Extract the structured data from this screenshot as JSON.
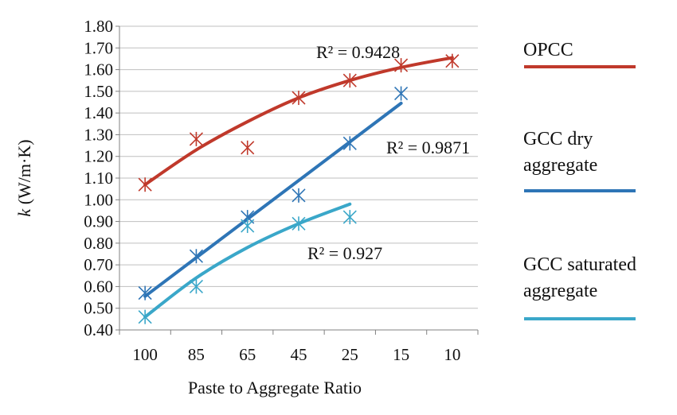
{
  "chart_data": {
    "type": "scatter",
    "title": "",
    "xlabel": "Paste to Aggregate Ratio",
    "ylabel_italic": "k",
    "ylabel_rest": " (W/m·K)",
    "categories": [
      "100",
      "85",
      "65",
      "45",
      "25",
      "15",
      "10"
    ],
    "x_scale": "categorical",
    "ylim": [
      0.4,
      1.8
    ],
    "yticks": [
      "0.40",
      "0.50",
      "0.60",
      "0.70",
      "0.80",
      "0.90",
      "1.00",
      "1.10",
      "1.20",
      "1.30",
      "1.40",
      "1.50",
      "1.60",
      "1.70",
      "1.80"
    ],
    "grid": true,
    "legend_position": "right",
    "series": [
      {
        "name": "OPCC",
        "legend_lines": [
          "OPCC"
        ],
        "color": "#c0392b",
        "marker": "x-star",
        "points": [
          {
            "x": "100",
            "y": 1.07
          },
          {
            "x": "85",
            "y": 1.28
          },
          {
            "x": "65",
            "y": 1.24
          },
          {
            "x": "45",
            "y": 1.47
          },
          {
            "x": "25",
            "y": 1.55
          },
          {
            "x": "15",
            "y": 1.62
          },
          {
            "x": "10",
            "y": 1.64
          }
        ],
        "trendline": {
          "type": "polynomial",
          "points": [
            {
              "x": "100",
              "y": 1.07
            },
            {
              "x": "85",
              "y": 1.23
            },
            {
              "x": "65",
              "y": 1.36
            },
            {
              "x": "45",
              "y": 1.47
            },
            {
              "x": "25",
              "y": 1.55
            },
            {
              "x": "15",
              "y": 1.61
            },
            {
              "x": "10",
              "y": 1.655
            }
          ]
        },
        "r2_label": "R² = 0.9428"
      },
      {
        "name": "GCC dry aggregate",
        "legend_lines": [
          "GCC dry",
          "aggregate"
        ],
        "color": "#2e75b6",
        "marker": "x-star",
        "points": [
          {
            "x": "100",
            "y": 0.57
          },
          {
            "x": "85",
            "y": 0.74
          },
          {
            "x": "65",
            "y": 0.92
          },
          {
            "x": "45",
            "y": 1.02
          },
          {
            "x": "25",
            "y": 1.26
          },
          {
            "x": "15",
            "y": 1.49
          }
        ],
        "trendline": {
          "type": "linear",
          "points": [
            {
              "x": "100",
              "y": 0.555
            },
            {
              "x": "15",
              "y": 1.445
            }
          ]
        },
        "r2_label": "R² = 0.9871"
      },
      {
        "name": "GCC saturated aggregate",
        "legend_lines": [
          "GCC saturated",
          "aggregate"
        ],
        "color": "#3aa7c9",
        "marker": "x-star",
        "points": [
          {
            "x": "100",
            "y": 0.46
          },
          {
            "x": "85",
            "y": 0.6
          },
          {
            "x": "65",
            "y": 0.88
          },
          {
            "x": "45",
            "y": 0.89
          },
          {
            "x": "25",
            "y": 0.92
          }
        ],
        "trendline": {
          "type": "polynomial",
          "points": [
            {
              "x": "100",
              "y": 0.46
            },
            {
              "x": "85",
              "y": 0.64
            },
            {
              "x": "65",
              "y": 0.78
            },
            {
              "x": "45",
              "y": 0.89
            },
            {
              "x": "25",
              "y": 0.98
            }
          ]
        },
        "r2_label": "R² = 0.927"
      }
    ]
  }
}
